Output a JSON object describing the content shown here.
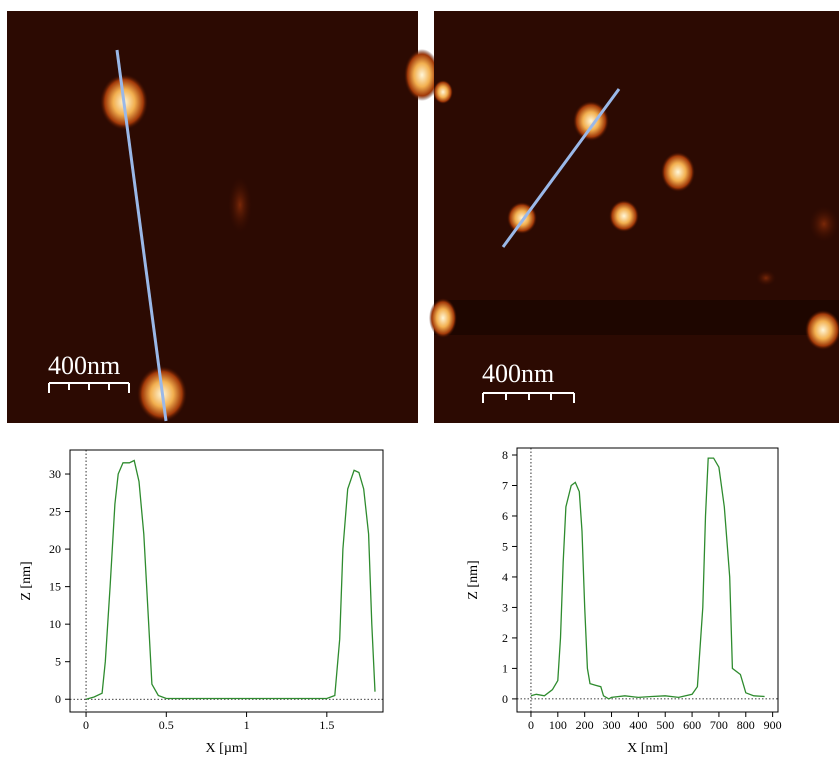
{
  "images": [
    {
      "scale_bar": "400nm"
    },
    {
      "scale_bar": "400nm"
    }
  ],
  "chart_data": [
    {
      "type": "line",
      "x_label": "X [µm]",
      "y_label": "Z [nm]",
      "color": "#2e8b2e",
      "x": [
        0,
        0.05,
        0.1,
        0.12,
        0.15,
        0.18,
        0.2,
        0.23,
        0.27,
        0.3,
        0.33,
        0.36,
        0.39,
        0.41,
        0.45,
        0.5,
        1.0,
        1.5,
        1.55,
        1.58,
        1.6,
        1.63,
        1.67,
        1.7,
        1.73,
        1.76,
        1.78,
        1.8
      ],
      "values": [
        0,
        0.3,
        0.8,
        5,
        15,
        26,
        30,
        31.5,
        31.5,
        31.8,
        29,
        22,
        10,
        2,
        0.5,
        0.1,
        0.1,
        0.1,
        0.5,
        8,
        20,
        28,
        30.5,
        30.2,
        28,
        22,
        10,
        1
      ],
      "xlim": [
        -0.1,
        1.85
      ],
      "ylim": [
        -1.7,
        33.2
      ],
      "xticks": [
        0,
        0.5,
        1,
        1.5
      ],
      "yticks": [
        0,
        5,
        10,
        15,
        20,
        25,
        30
      ],
      "zero_lines": true
    },
    {
      "type": "line",
      "x_label": "X [nm]",
      "y_label": "Z [nm]",
      "color": "#2e8b2e",
      "x": [
        0,
        20,
        50,
        80,
        100,
        110,
        120,
        130,
        150,
        165,
        180,
        190,
        200,
        210,
        220,
        240,
        260,
        270,
        290,
        300,
        350,
        400,
        450,
        500,
        550,
        600,
        620,
        640,
        650,
        660,
        680,
        700,
        720,
        740,
        750,
        780,
        790,
        800,
        830,
        870
      ],
      "values": [
        0.1,
        0.15,
        0.1,
        0.3,
        0.6,
        2,
        4.5,
        6.3,
        7,
        7.1,
        6.8,
        5.5,
        3,
        1,
        0.5,
        0.45,
        0.4,
        0.1,
        0,
        0.05,
        0.1,
        0.05,
        0.08,
        0.1,
        0.05,
        0.15,
        0.4,
        3,
        6,
        7.9,
        7.9,
        7.6,
        6.3,
        4,
        1,
        0.8,
        0.5,
        0.2,
        0.1,
        0.08
      ],
      "xlim": [
        -52,
        920
      ],
      "ylim": [
        -0.43,
        8.23
      ],
      "xticks": [
        0,
        100,
        200,
        300,
        400,
        500,
        600,
        700,
        800,
        900
      ],
      "yticks": [
        0,
        1,
        2,
        3,
        4,
        5,
        6,
        7,
        8
      ],
      "zero_lines": true
    }
  ]
}
